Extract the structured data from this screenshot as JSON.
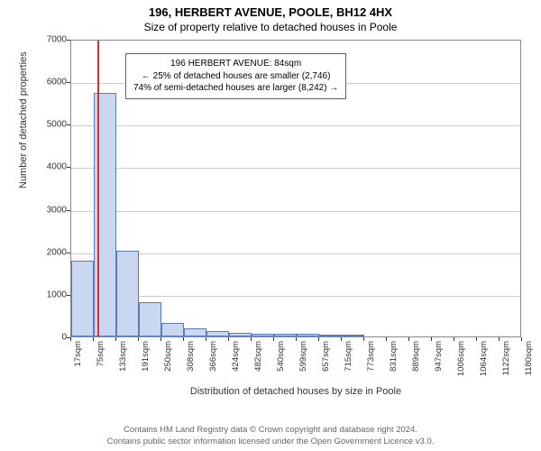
{
  "titles": {
    "line1": "196, HERBERT AVENUE, POOLE, BH12 4HX",
    "line2": "Size of property relative to detached houses in Poole"
  },
  "chart": {
    "type": "histogram",
    "ylabel": "Number of detached properties",
    "xlabel": "Distribution of detached houses by size in Poole",
    "ylim": [
      0,
      7000
    ],
    "ytick_step": 1000,
    "yticks": [
      0,
      1000,
      2000,
      3000,
      4000,
      5000,
      6000,
      7000
    ],
    "xticks": [
      "17sqm",
      "75sqm",
      "133sqm",
      "191sqm",
      "250sqm",
      "308sqm",
      "366sqm",
      "424sqm",
      "482sqm",
      "540sqm",
      "599sqm",
      "657sqm",
      "715sqm",
      "773sqm",
      "831sqm",
      "889sqm",
      "947sqm",
      "1006sqm",
      "1064sqm",
      "1122sqm",
      "1180sqm"
    ],
    "bar_fill": "#c9d7f0",
    "bar_stroke": "#5b7bb8",
    "grid_color": "#cccccc",
    "axis_color": "#888888",
    "background": "#ffffff",
    "values": [
      1780,
      5720,
      2020,
      800,
      320,
      200,
      120,
      90,
      70,
      60,
      55,
      50,
      40,
      0,
      0,
      0,
      0,
      0,
      0,
      0
    ],
    "marker": {
      "position_sqm": 84,
      "color": "#d93030"
    },
    "annotation": {
      "border_color": "#d93030",
      "lines": [
        "196 HERBERT AVENUE: 84sqm",
        "← 25% of detached houses are smaller (2,746)",
        "74% of semi-detached houses are larger (8,242) →"
      ]
    }
  },
  "footer": {
    "line1": "Contains HM Land Registry data © Crown copyright and database right 2024.",
    "line2": "Contains public sector information licensed under the Open Government Licence v3.0."
  }
}
